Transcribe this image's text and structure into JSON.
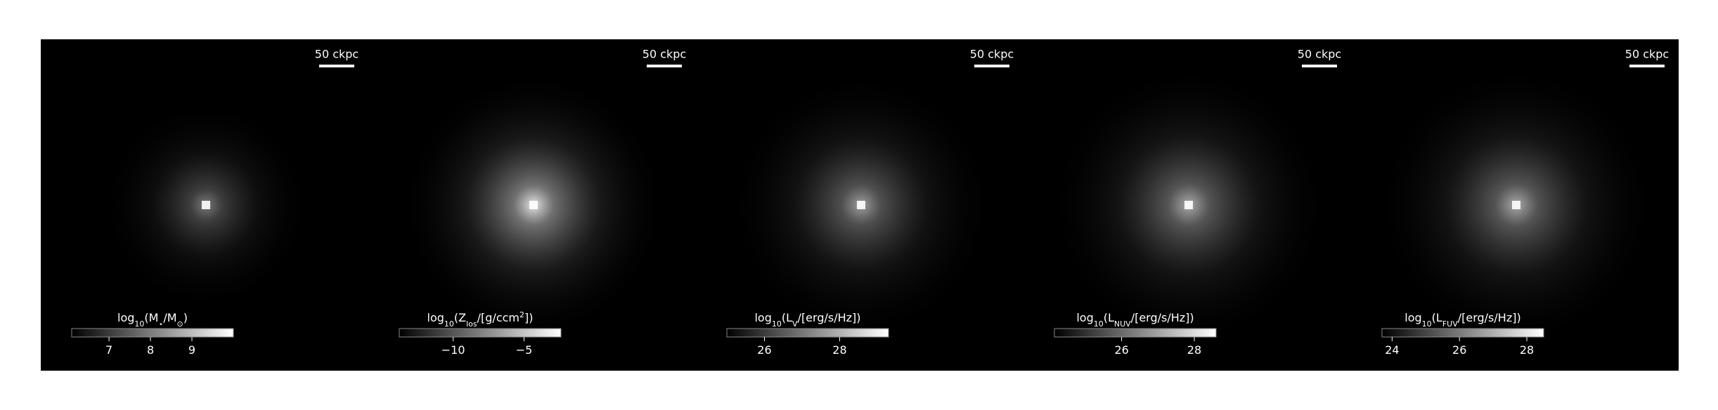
{
  "chart_data": [
    {
      "type": "image",
      "scalebar": "50 ckpc",
      "colorbar": {
        "label": [
          {
            "text": "log"
          },
          {
            "text": "10",
            "sub": true
          },
          {
            "text": "(M"
          },
          {
            "text": "⋆",
            "sub": true
          },
          {
            "text": "/M"
          },
          {
            "text": "⊙",
            "sub": true
          },
          {
            "text": ")"
          }
        ],
        "clim": [
          6.1,
          10.0
        ],
        "ticks": [
          7,
          8,
          9
        ]
      }
    },
    {
      "type": "image",
      "scalebar": "50 ckpc",
      "colorbar": {
        "label": [
          {
            "text": "log"
          },
          {
            "text": "10",
            "sub": true
          },
          {
            "text": "(Z"
          },
          {
            "text": "los",
            "sub": true
          },
          {
            "text": "/[g/ccm"
          },
          {
            "text": "2",
            "sup": true
          },
          {
            "text": "])"
          }
        ],
        "clim": [
          -13.8,
          -2.4
        ],
        "ticks": [
          {
            "value": -10,
            "label": "−10"
          },
          {
            "value": -5,
            "label": "−5"
          }
        ]
      }
    },
    {
      "type": "image",
      "scalebar": "50 ckpc",
      "colorbar": {
        "label": [
          {
            "text": "log"
          },
          {
            "text": "10",
            "sub": true
          },
          {
            "text": "(L"
          },
          {
            "text": "V",
            "sub": true
          },
          {
            "text": "/[erg/s/Hz])"
          }
        ],
        "clim": [
          25.0,
          29.3
        ],
        "ticks": [
          26,
          28
        ]
      }
    },
    {
      "type": "image",
      "scalebar": "50 ckpc",
      "colorbar": {
        "label": [
          {
            "text": "log"
          },
          {
            "text": "10",
            "sub": true
          },
          {
            "text": "(L"
          },
          {
            "text": "NUV",
            "sub": true
          },
          {
            "text": "/[erg/s/Hz])"
          }
        ],
        "clim": [
          24.15,
          28.6
        ],
        "ticks": [
          26,
          28
        ]
      }
    },
    {
      "type": "image",
      "scalebar": "50 ckpc",
      "colorbar": {
        "label": [
          {
            "text": "log"
          },
          {
            "text": "10",
            "sub": true
          },
          {
            "text": "(L"
          },
          {
            "text": "FUV",
            "sub": true
          },
          {
            "text": "/[erg/s/Hz])"
          }
        ],
        "clim": [
          23.7,
          28.5
        ],
        "ticks": [
          24,
          26,
          28
        ]
      }
    }
  ]
}
